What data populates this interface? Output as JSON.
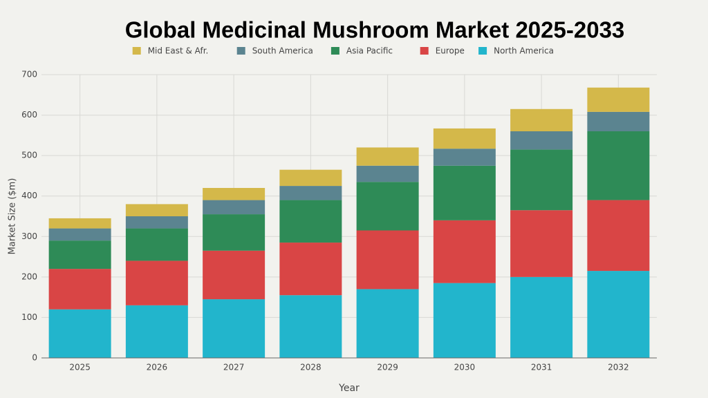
{
  "chart_data": {
    "type": "stacked-bar",
    "title": "Global Medicinal Mushroom Market 2025-2033",
    "x_label": "Year",
    "y_label": "Market Size ($m)",
    "categories": [
      "2025",
      "2026",
      "2027",
      "2028",
      "2029",
      "2030",
      "2031",
      "2032"
    ],
    "series": [
      {
        "name": "North America",
        "color": "#22b5cc",
        "values": [
          120,
          130,
          145,
          155,
          170,
          185,
          200,
          215
        ]
      },
      {
        "name": "Europe",
        "color": "#d94545",
        "values": [
          100,
          110,
          120,
          130,
          145,
          155,
          165,
          175
        ]
      },
      {
        "name": "Asia Pacific",
        "color": "#2e8b57",
        "values": [
          70,
          80,
          90,
          105,
          120,
          135,
          150,
          170
        ]
      },
      {
        "name": "South America",
        "color": "#5b8490",
        "values": [
          30,
          30,
          35,
          35,
          40,
          42,
          45,
          48
        ]
      },
      {
        "name": "Mid East & Afr.",
        "color": "#d4b84a",
        "values": [
          25,
          30,
          30,
          40,
          45,
          50,
          55,
          60
        ]
      }
    ],
    "ylim": [
      0,
      700
    ],
    "yticks": [
      0,
      100,
      200,
      300,
      400,
      500,
      600,
      700
    ],
    "grid": true
  }
}
